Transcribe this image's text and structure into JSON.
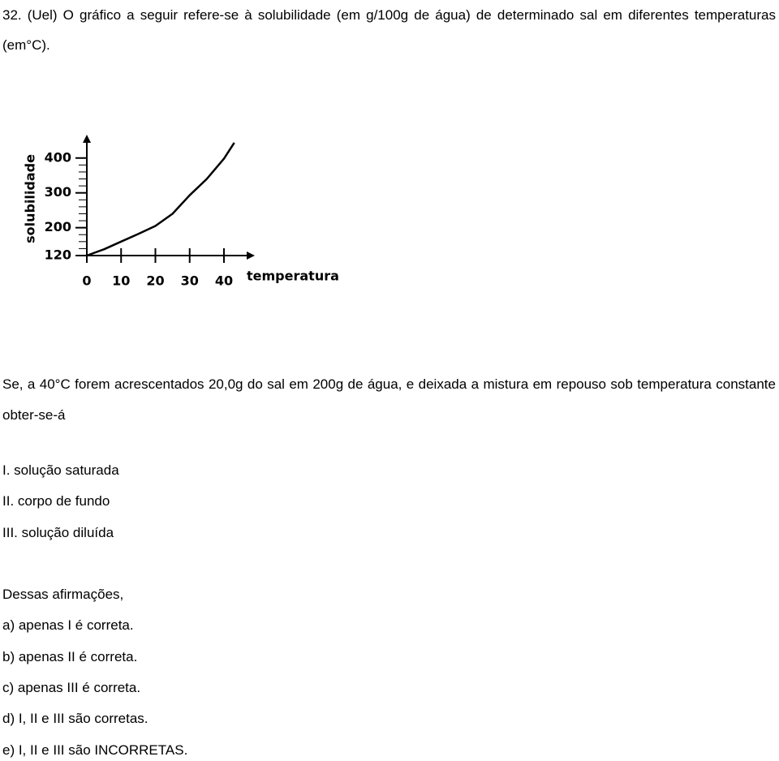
{
  "question": {
    "intro": "32. (Uel) O gráfico a seguir refere-se à solubilidade (em g/100g de água) de determinado sal em diferentes temperaturas (em°C).",
    "statement": "Se, a 40°C forem acrescentados 20,0g do sal em 200g de água, e deixada a mistura em repouso sob temperatura constante obter-se-á",
    "items": [
      "I. solução saturada",
      "II. corpo de fundo",
      "III. solução diluída"
    ],
    "prompt": "Dessas afirmações,",
    "options": [
      "a) apenas I é correta.",
      "b) apenas II é correta.",
      "c) apenas III é correta.",
      "d) I, II e III são corretas.",
      "e) I, II e III são INCORRETAS."
    ]
  },
  "chart_data": {
    "type": "line",
    "ylabel": "solubilidade",
    "xlabel": "temperatura",
    "x": [
      0,
      5,
      10,
      15,
      20,
      25,
      30,
      35,
      40,
      43
    ],
    "values": [
      120,
      138,
      160,
      182,
      205,
      240,
      293,
      340,
      398,
      444
    ],
    "color": "#000000",
    "xlim": [
      0,
      49
    ],
    "ylim": [
      120,
      467
    ],
    "xticks": [
      0,
      10,
      20,
      30,
      40
    ],
    "yticks": [
      120,
      200,
      300,
      400
    ]
  }
}
